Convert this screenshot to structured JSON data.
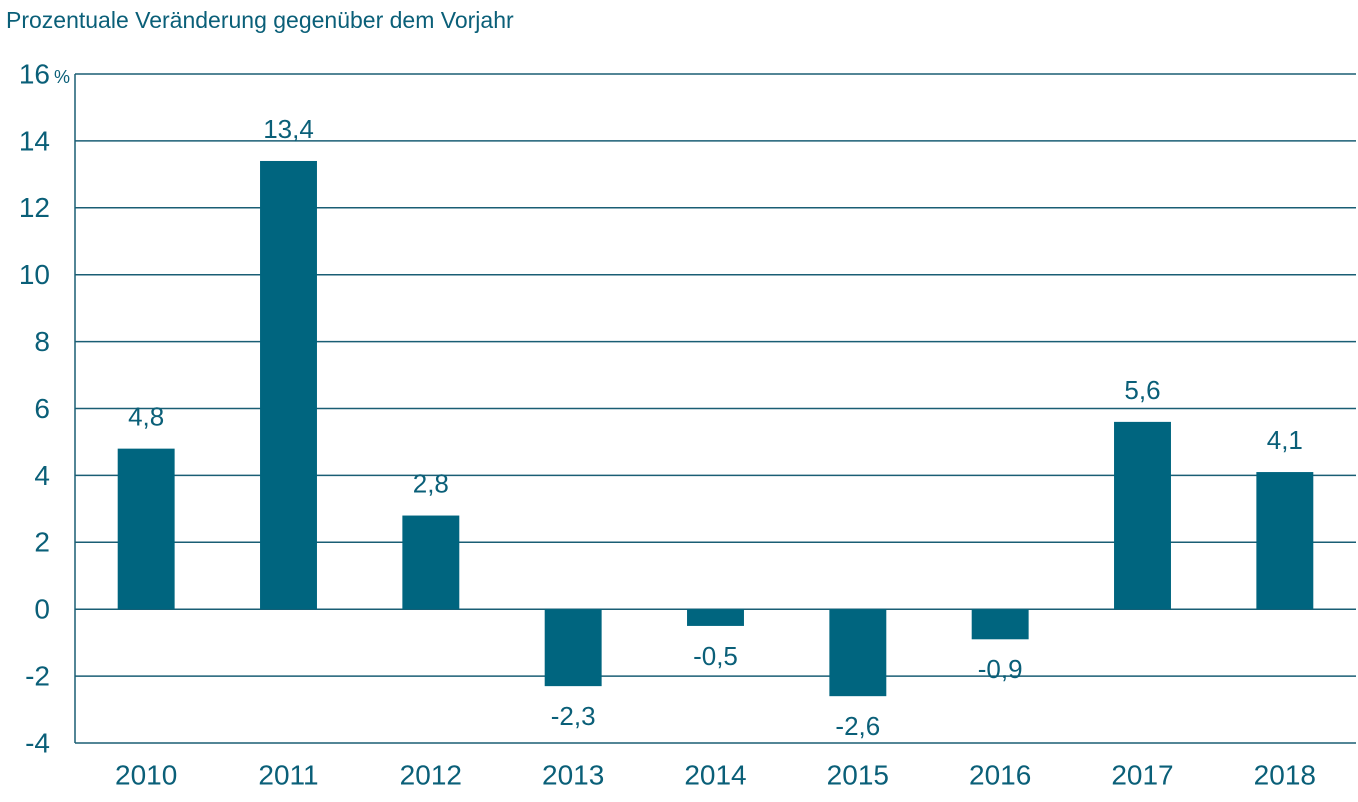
{
  "chart_data": {
    "type": "bar",
    "title": "Prozentuale Veränderung gegenüber dem Vorjahr",
    "y_unit": "%",
    "categories": [
      "2010",
      "2011",
      "2012",
      "2013",
      "2014",
      "2015",
      "2016",
      "2017",
      "2018"
    ],
    "values": [
      4.8,
      13.4,
      2.8,
      -2.3,
      -0.5,
      -2.6,
      -0.9,
      5.6,
      4.1
    ],
    "value_labels": [
      "4,8",
      "13,4",
      "2,8",
      "-2,3",
      "-0,5",
      "-2,6",
      "-0,9",
      "5,6",
      "4,1"
    ],
    "color": "#00657f",
    "ylim": [
      -4,
      16
    ],
    "yticks": [
      -4,
      -2,
      0,
      2,
      4,
      6,
      8,
      10,
      12,
      14,
      16
    ],
    "grid": true
  }
}
